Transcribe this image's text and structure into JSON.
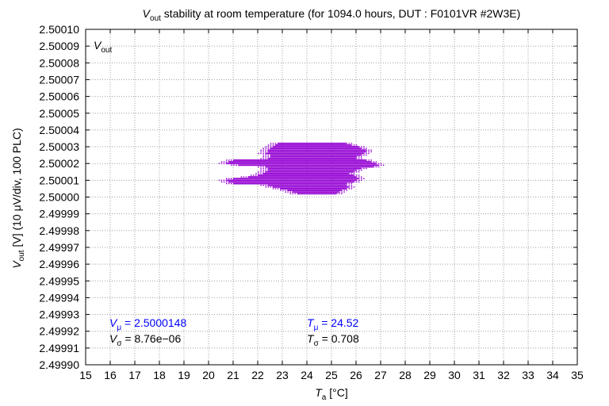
{
  "title": {
    "v": "V",
    "sub": "out",
    "rest": " stability at room temperature (for 1094.0 hours, DUT : F0101VR #2W3E)"
  },
  "xlabel": {
    "t": "T",
    "sub": "a",
    "rest": " [°C]"
  },
  "ylabel": {
    "v": "V",
    "sub": "out",
    "rest": " [V] (10 μV/div, 100 PLC)"
  },
  "legend": {
    "v": "V",
    "sub": "out"
  },
  "stats": {
    "vmu": {
      "sym": "V",
      "sub": "μ",
      "text": " = 2.5000148"
    },
    "vsigma": {
      "sym": "V",
      "sub": "σ",
      "text": " = 8.76e−06"
    },
    "tmu": {
      "sym": "T",
      "sub": "μ",
      "text": " = 24.52"
    },
    "tsigma": {
      "sym": "T",
      "sub": "σ",
      "text": " = 0.708"
    }
  },
  "colors": {
    "series": "#9400d3",
    "stat_blue": "#0000ff",
    "grid": "#a0a0a0"
  },
  "chart_data": {
    "type": "scatter",
    "xlim": [
      15,
      35
    ],
    "ylim": [
      2.4999,
      2.5001
    ],
    "grid": true,
    "legend_position": "top-left",
    "x_ticks": [
      "15",
      "16",
      "17",
      "18",
      "19",
      "20",
      "21",
      "22",
      "23",
      "24",
      "25",
      "26",
      "27",
      "28",
      "29",
      "30",
      "31",
      "32",
      "33",
      "34",
      "35"
    ],
    "y_ticks": [
      "2.49990",
      "2.49991",
      "2.49992",
      "2.49993",
      "2.49994",
      "2.49995",
      "2.49996",
      "2.49997",
      "2.49998",
      "2.49999",
      "2.50000",
      "2.50001",
      "2.50002",
      "2.50003",
      "2.50004",
      "2.50005",
      "2.50006",
      "2.50007",
      "2.50008",
      "2.50009",
      "2.50010"
    ],
    "series": [
      {
        "name": "Vout",
        "color": "#9400d3",
        "bands": [
          {
            "y": 2.500032,
            "x0": 22.8,
            "x1": 25.6
          },
          {
            "y": 2.500031,
            "x0": 22.7,
            "x1": 25.8
          },
          {
            "y": 2.50003,
            "x0": 22.6,
            "x1": 26.1
          },
          {
            "y": 2.500029,
            "x0": 22.5,
            "x1": 26.2
          },
          {
            "y": 2.500028,
            "x0": 22.4,
            "x1": 26.4
          },
          {
            "y": 2.500027,
            "x0": 22.4,
            "x1": 26.4
          },
          {
            "y": 2.500026,
            "x0": 22.3,
            "x1": 26.3
          },
          {
            "y": 2.500025,
            "x0": 22.5,
            "x1": 26.2
          },
          {
            "y": 2.500024,
            "x0": 22.5,
            "x1": 26.0
          },
          {
            "y": 2.500023,
            "x0": 22.4,
            "x1": 26.0
          },
          {
            "y": 2.500022,
            "x0": 21.0,
            "x1": 26.4
          },
          {
            "y": 2.500021,
            "x0": 20.8,
            "x1": 26.6
          },
          {
            "y": 2.50002,
            "x0": 20.7,
            "x1": 26.8
          },
          {
            "y": 2.500019,
            "x0": 21.2,
            "x1": 26.9
          },
          {
            "y": 2.500018,
            "x0": 22.3,
            "x1": 26.7
          },
          {
            "y": 2.500017,
            "x0": 22.4,
            "x1": 26.2
          },
          {
            "y": 2.500016,
            "x0": 22.4,
            "x1": 26.0
          },
          {
            "y": 2.500015,
            "x0": 22.3,
            "x1": 25.9
          },
          {
            "y": 2.500014,
            "x0": 22.2,
            "x1": 25.7
          },
          {
            "y": 2.500013,
            "x0": 22.0,
            "x1": 25.9
          },
          {
            "y": 2.500012,
            "x0": 21.6,
            "x1": 26.0
          },
          {
            "y": 2.500011,
            "x0": 21.0,
            "x1": 26.1
          },
          {
            "y": 2.50001,
            "x0": 20.7,
            "x1": 26.0
          },
          {
            "y": 2.500009,
            "x0": 20.8,
            "x1": 25.9
          },
          {
            "y": 2.500008,
            "x0": 21.0,
            "x1": 25.6
          },
          {
            "y": 2.500007,
            "x0": 22.4,
            "x1": 25.6
          },
          {
            "y": 2.500006,
            "x0": 22.6,
            "x1": 25.7
          },
          {
            "y": 2.500005,
            "x0": 22.9,
            "x1": 25.6
          },
          {
            "y": 2.500004,
            "x0": 23.2,
            "x1": 25.4
          },
          {
            "y": 2.500003,
            "x0": 23.4,
            "x1": 25.3
          },
          {
            "y": 2.500002,
            "x0": 23.6,
            "x1": 25.2
          }
        ]
      }
    ]
  }
}
